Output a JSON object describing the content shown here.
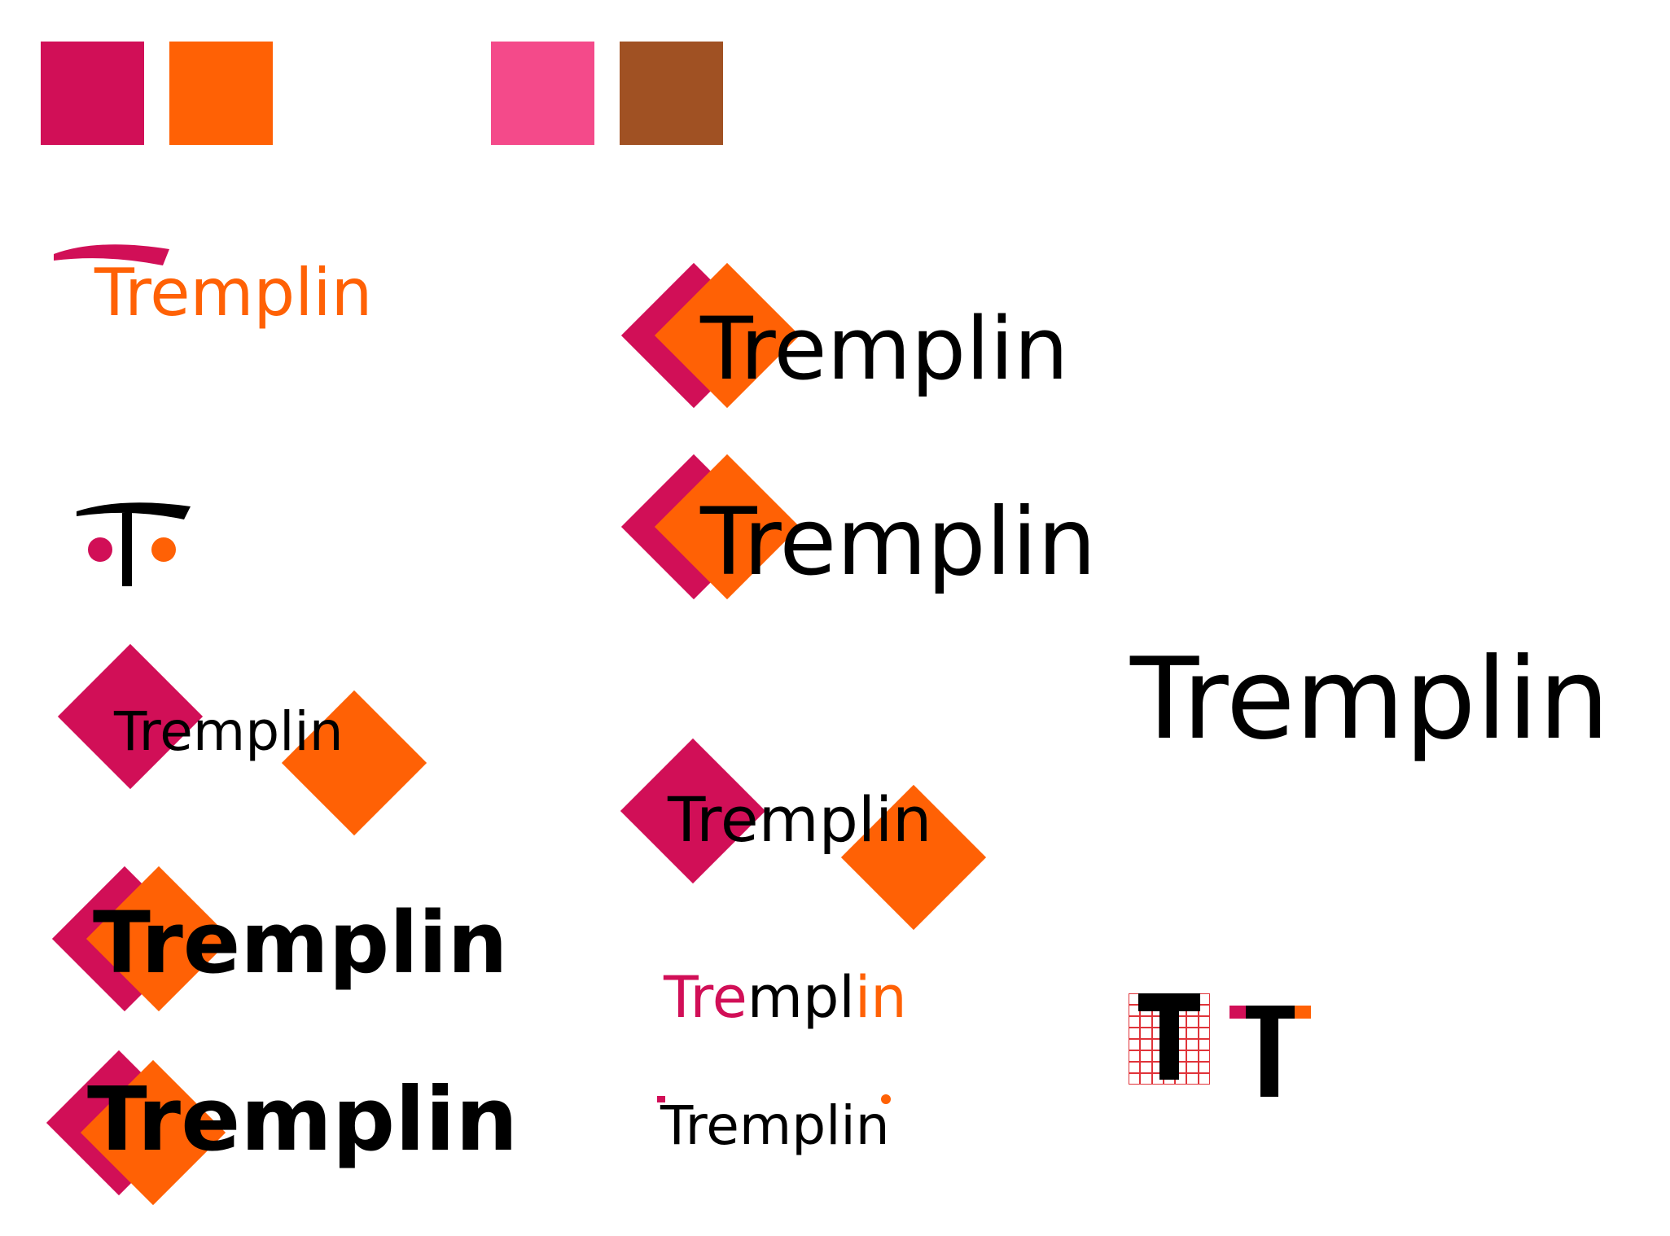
{
  "palette": {
    "magenta": "#D10F57",
    "orange": "#FF6105",
    "pink": "#F44A8A",
    "brown": "#A05123",
    "black": "#000000",
    "grid_red": "#E0343A"
  },
  "swatches": [
    "#D10F57",
    "#FF6105",
    "#F44A8A",
    "#A05123"
  ],
  "logos": {
    "arc_wordmark": "Tremplin",
    "arc_monogram": "T",
    "split_diamond_small": "Tremplin",
    "overlap_diamond_bold_a": "Tremplin",
    "overlap_diamond_bold_b": "Tremplin",
    "overlap_diamond_light_a": "Tremplin",
    "overlap_diamond_light_b": "Tremplin",
    "split_diamond_large": "Tremplin",
    "colored_wordmark": {
      "part1": "Tre",
      "part2": "mpl",
      "part3": "in"
    },
    "dotted_wordmark": "Tremplin",
    "plain_wordmark": "Tremplin",
    "grid_monogram": "T",
    "accent_monogram": "T"
  }
}
